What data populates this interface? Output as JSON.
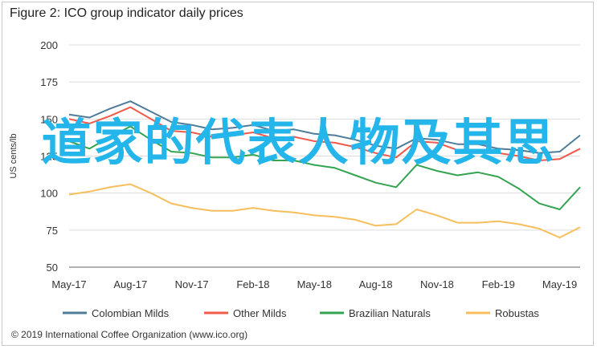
{
  "title": "Figure 2: ICO group indicator daily prices",
  "ylabel": "US cents/lb",
  "footer": "© 2019 International Coffee Organization (www.ico.org)",
  "overlay_text": "道家的代表人物及其思",
  "colors": {
    "Colombian Milds": "#4f7c98",
    "Other Milds": "#f05a4a",
    "Brazilian Naturals": "#35a452",
    "Robustas": "#f6be5c",
    "overlay": "#24b6ea"
  },
  "chart_data": {
    "type": "line",
    "title": "Figure 2: ICO group indicator daily prices",
    "xlabel": "",
    "ylabel": "US cents/lb",
    "ylim": [
      50,
      200
    ],
    "yticks": [
      50,
      75,
      100,
      125,
      150,
      175,
      200
    ],
    "xticks": [
      "May-17",
      "Aug-17",
      "Nov-17",
      "Feb-18",
      "May-18",
      "Aug-18",
      "Nov-18",
      "Feb-19",
      "May-19"
    ],
    "x": [
      "May-17",
      "Jun-17",
      "Jul-17",
      "Aug-17",
      "Sep-17",
      "Oct-17",
      "Nov-17",
      "Dec-17",
      "Jan-18",
      "Feb-18",
      "Mar-18",
      "Apr-18",
      "May-18",
      "Jun-18",
      "Jul-18",
      "Aug-18",
      "Sep-18",
      "Oct-18",
      "Nov-18",
      "Dec-18",
      "Jan-19",
      "Feb-19",
      "Mar-19",
      "Apr-19",
      "May-19",
      "Jun-19"
    ],
    "grid": true,
    "legend_position": "bottom",
    "series": [
      {
        "name": "Colombian Milds",
        "values": [
          153,
          151,
          157,
          162,
          155,
          148,
          146,
          143,
          144,
          146,
          142,
          143,
          140,
          139,
          136,
          132,
          130,
          137,
          136,
          133,
          133,
          130,
          129,
          127,
          128,
          139
        ]
      },
      {
        "name": "Other Milds",
        "values": [
          150,
          147,
          152,
          158,
          150,
          142,
          141,
          138,
          139,
          141,
          137,
          138,
          135,
          134,
          131,
          127,
          124,
          135,
          134,
          129,
          129,
          127,
          125,
          122,
          123,
          130
        ]
      },
      {
        "name": "Brazilian Naturals",
        "values": [
          135,
          130,
          138,
          145,
          136,
          128,
          127,
          124,
          124,
          126,
          122,
          122,
          119,
          117,
          112,
          107,
          104,
          119,
          115,
          112,
          114,
          111,
          103,
          93,
          89,
          104
        ]
      },
      {
        "name": "Robustas",
        "values": [
          99,
          101,
          104,
          106,
          100,
          93,
          90,
          88,
          88,
          90,
          88,
          87,
          85,
          84,
          82,
          78,
          79,
          89,
          85,
          80,
          80,
          81,
          79,
          76,
          70,
          77
        ]
      }
    ]
  }
}
